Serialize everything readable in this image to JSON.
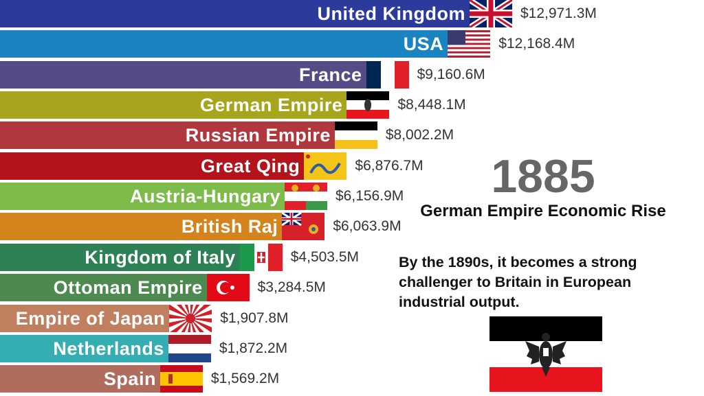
{
  "chart_data": {
    "type": "bar",
    "orientation": "horizontal",
    "unit_format": "$#,###.#M",
    "year": "1885",
    "categories": [
      "United Kingdom",
      "USA",
      "France",
      "German Empire",
      "Russian Empire",
      "Great Qing",
      "Austria-Hungary",
      "British Raj",
      "Kingdom of Italy",
      "Ottoman Empire",
      "Empire of Japan",
      "Netherlands",
      "Spain"
    ],
    "values": [
      12971.3,
      12168.4,
      9160.6,
      8448.1,
      8002.2,
      6876.7,
      6156.9,
      6063.9,
      4503.5,
      3284.5,
      1907.8,
      1872.2,
      1569.2
    ],
    "value_labels": [
      "$12,971.3M",
      "$12,168.4M",
      "$9,160.6M",
      "$8,448.1M",
      "$8,002.2M",
      "$6,876.7M",
      "$6,156.9M",
      "$6,063.9M",
      "$4,503.5M",
      "$3,284.5M",
      "$1,907.8M",
      "$1,872.2M",
      "$1,569.2M"
    ],
    "colors": [
      "#2b3a9b",
      "#1a84c2",
      "#534c86",
      "#a6a51c",
      "#b0383c",
      "#b3141c",
      "#7dbb4b",
      "#d5831c",
      "#2e8055",
      "#4d8a50",
      "#c07f5e",
      "#34aeb2",
      "#b06d5e"
    ],
    "flags": [
      "uk-flag",
      "usa-flag",
      "france-flag",
      "german-empire-flag",
      "russian-imperial-flag",
      "qing-dragon-flag",
      "austria-hungary-flag",
      "british-raj-flag",
      "italy-flag",
      "ottoman-flag",
      "japan-rising-sun-flag",
      "netherlands-flag",
      "spain-flag"
    ],
    "grid": false,
    "legend": "none"
  },
  "annotation": {
    "title": "German Empire Economic Rise",
    "text": "By the 1890s, it becomes a strong challenger to Britain in European industrial output.",
    "flag": "german-empire-flag"
  }
}
